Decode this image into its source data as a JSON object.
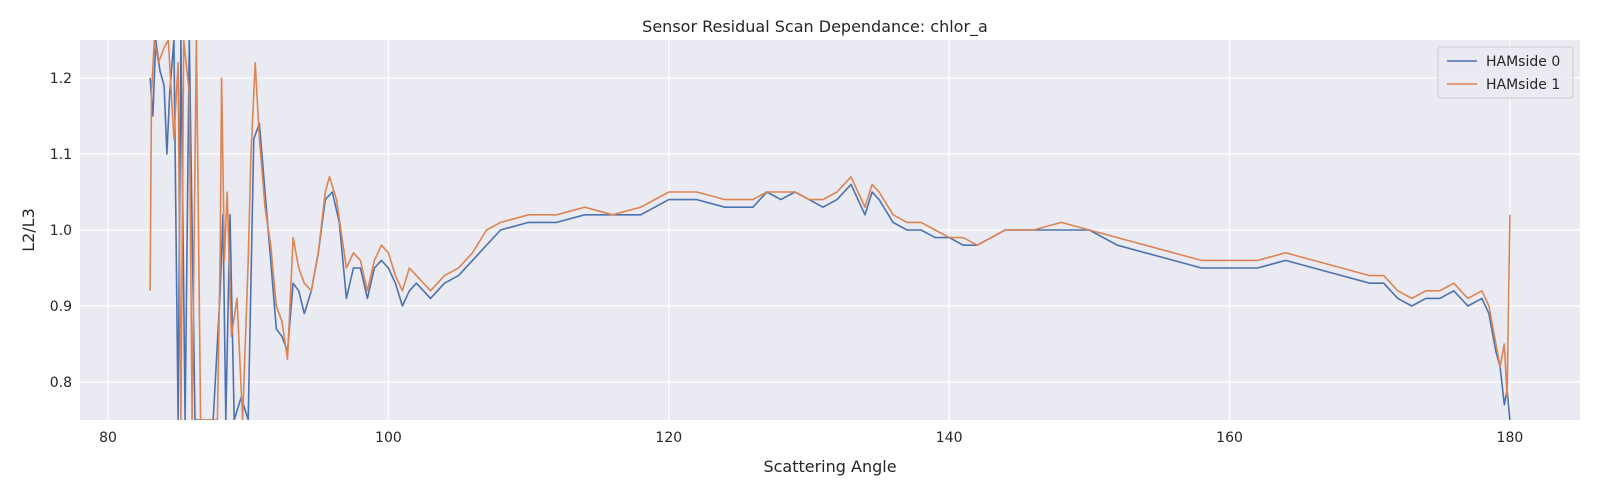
{
  "chart_data": {
    "type": "line",
    "title": "Sensor Residual Scan Dependance: chlor_a",
    "xlabel": "Scattering Angle",
    "ylabel": "L2/L3",
    "xlim": [
      78,
      185
    ],
    "ylim": [
      0.75,
      1.25
    ],
    "xticks": [
      80,
      100,
      120,
      140,
      160,
      180
    ],
    "yticks": [
      0.8,
      0.9,
      1.0,
      1.1,
      1.2
    ],
    "xtick_labels": [
      "80",
      "100",
      "120",
      "140",
      "160",
      "180"
    ],
    "ytick_labels": [
      "0.8",
      "0.9",
      "1.0",
      "1.1",
      "1.2"
    ],
    "grid": true,
    "legend_position": "top-right",
    "colors": {
      "plot_background": "#eaeaf2",
      "grid": "#ffffff",
      "series0": "#4c72b0",
      "series1": "#dd8452"
    },
    "series": [
      {
        "name": "HAMside 0",
        "color": "#4c72b0",
        "points": [
          [
            83.0,
            1.2
          ],
          [
            83.2,
            1.15
          ],
          [
            83.4,
            1.25
          ],
          [
            83.7,
            1.21
          ],
          [
            84.0,
            1.19
          ],
          [
            84.2,
            1.1
          ],
          [
            84.4,
            1.18
          ],
          [
            84.7,
            1.25
          ],
          [
            85.0,
            0.75
          ],
          [
            85.2,
            1.25
          ],
          [
            85.5,
            0.75
          ],
          [
            85.8,
            1.25
          ],
          [
            86.2,
            0.75
          ],
          [
            87.5,
            0.75
          ],
          [
            88.0,
            0.92
          ],
          [
            88.2,
            1.02
          ],
          [
            88.4,
            0.75
          ],
          [
            88.7,
            1.02
          ],
          [
            89.0,
            0.75
          ],
          [
            89.5,
            0.78
          ],
          [
            90.0,
            0.75
          ],
          [
            90.4,
            1.12
          ],
          [
            90.8,
            1.14
          ],
          [
            91.2,
            1.05
          ],
          [
            91.6,
            0.96
          ],
          [
            92.0,
            0.87
          ],
          [
            92.4,
            0.86
          ],
          [
            92.8,
            0.84
          ],
          [
            93.2,
            0.93
          ],
          [
            93.6,
            0.92
          ],
          [
            94.0,
            0.89
          ],
          [
            94.5,
            0.92
          ],
          [
            95.0,
            0.97
          ],
          [
            95.5,
            1.04
          ],
          [
            96.0,
            1.05
          ],
          [
            96.5,
            1.01
          ],
          [
            97.0,
            0.91
          ],
          [
            97.5,
            0.95
          ],
          [
            98.0,
            0.95
          ],
          [
            98.5,
            0.91
          ],
          [
            99.0,
            0.95
          ],
          [
            99.5,
            0.96
          ],
          [
            100.0,
            0.95
          ],
          [
            100.5,
            0.93
          ],
          [
            101.0,
            0.9
          ],
          [
            101.5,
            0.92
          ],
          [
            102.0,
            0.93
          ],
          [
            103.0,
            0.91
          ],
          [
            104.0,
            0.93
          ],
          [
            105.0,
            0.94
          ],
          [
            106.0,
            0.96
          ],
          [
            107.0,
            0.98
          ],
          [
            108.0,
            1.0
          ],
          [
            110.0,
            1.01
          ],
          [
            112.0,
            1.01
          ],
          [
            114.0,
            1.02
          ],
          [
            116.0,
            1.02
          ],
          [
            118.0,
            1.02
          ],
          [
            120.0,
            1.04
          ],
          [
            122.0,
            1.04
          ],
          [
            124.0,
            1.03
          ],
          [
            126.0,
            1.03
          ],
          [
            127.0,
            1.05
          ],
          [
            128.0,
            1.04
          ],
          [
            129.0,
            1.05
          ],
          [
            130.0,
            1.04
          ],
          [
            131.0,
            1.03
          ],
          [
            132.0,
            1.04
          ],
          [
            133.0,
            1.06
          ],
          [
            134.0,
            1.02
          ],
          [
            134.5,
            1.05
          ],
          [
            135.0,
            1.04
          ],
          [
            136.0,
            1.01
          ],
          [
            137.0,
            1.0
          ],
          [
            138.0,
            1.0
          ],
          [
            139.0,
            0.99
          ],
          [
            140.0,
            0.99
          ],
          [
            141.0,
            0.98
          ],
          [
            142.0,
            0.98
          ],
          [
            143.0,
            0.99
          ],
          [
            144.0,
            1.0
          ],
          [
            146.0,
            1.0
          ],
          [
            148.0,
            1.0
          ],
          [
            150.0,
            1.0
          ],
          [
            152.0,
            0.98
          ],
          [
            154.0,
            0.97
          ],
          [
            156.0,
            0.96
          ],
          [
            158.0,
            0.95
          ],
          [
            160.0,
            0.95
          ],
          [
            162.0,
            0.95
          ],
          [
            164.0,
            0.96
          ],
          [
            166.0,
            0.95
          ],
          [
            168.0,
            0.94
          ],
          [
            170.0,
            0.93
          ],
          [
            171.0,
            0.93
          ],
          [
            172.0,
            0.91
          ],
          [
            173.0,
            0.9
          ],
          [
            174.0,
            0.91
          ],
          [
            175.0,
            0.91
          ],
          [
            176.0,
            0.92
          ],
          [
            177.0,
            0.9
          ],
          [
            178.0,
            0.91
          ],
          [
            178.5,
            0.89
          ],
          [
            179.0,
            0.84
          ],
          [
            179.3,
            0.82
          ],
          [
            179.6,
            0.77
          ],
          [
            179.8,
            0.79
          ],
          [
            180.0,
            0.75
          ]
        ]
      },
      {
        "name": "HAMside 1",
        "color": "#dd8452",
        "points": [
          [
            83.0,
            0.92
          ],
          [
            83.1,
            1.18
          ],
          [
            83.3,
            1.25
          ],
          [
            83.6,
            1.22
          ],
          [
            84.0,
            1.24
          ],
          [
            84.3,
            1.25
          ],
          [
            84.7,
            1.12
          ],
          [
            85.0,
            1.22
          ],
          [
            85.2,
            0.75
          ],
          [
            85.4,
            1.25
          ],
          [
            85.8,
            1.18
          ],
          [
            86.0,
            0.75
          ],
          [
            86.3,
            1.25
          ],
          [
            86.6,
            0.75
          ],
          [
            87.8,
            0.75
          ],
          [
            88.0,
            0.97
          ],
          [
            88.1,
            1.2
          ],
          [
            88.3,
            0.96
          ],
          [
            88.5,
            1.05
          ],
          [
            88.8,
            0.86
          ],
          [
            89.2,
            0.91
          ],
          [
            89.6,
            0.75
          ],
          [
            90.0,
            0.96
          ],
          [
            90.2,
            1.1
          ],
          [
            90.5,
            1.22
          ],
          [
            90.8,
            1.12
          ],
          [
            91.2,
            1.03
          ],
          [
            91.6,
            0.98
          ],
          [
            92.0,
            0.9
          ],
          [
            92.4,
            0.88
          ],
          [
            92.8,
            0.83
          ],
          [
            93.2,
            0.99
          ],
          [
            93.6,
            0.95
          ],
          [
            94.0,
            0.93
          ],
          [
            94.5,
            0.92
          ],
          [
            95.0,
            0.97
          ],
          [
            95.5,
            1.05
          ],
          [
            95.8,
            1.07
          ],
          [
            96.3,
            1.04
          ],
          [
            97.0,
            0.95
          ],
          [
            97.5,
            0.97
          ],
          [
            98.0,
            0.96
          ],
          [
            98.5,
            0.92
          ],
          [
            99.0,
            0.96
          ],
          [
            99.5,
            0.98
          ],
          [
            100.0,
            0.97
          ],
          [
            100.5,
            0.94
          ],
          [
            101.0,
            0.92
          ],
          [
            101.5,
            0.95
          ],
          [
            102.0,
            0.94
          ],
          [
            103.0,
            0.92
          ],
          [
            104.0,
            0.94
          ],
          [
            105.0,
            0.95
          ],
          [
            106.0,
            0.97
          ],
          [
            107.0,
            1.0
          ],
          [
            108.0,
            1.01
          ],
          [
            110.0,
            1.02
          ],
          [
            112.0,
            1.02
          ],
          [
            114.0,
            1.03
          ],
          [
            116.0,
            1.02
          ],
          [
            118.0,
            1.03
          ],
          [
            120.0,
            1.05
          ],
          [
            122.0,
            1.05
          ],
          [
            124.0,
            1.04
          ],
          [
            126.0,
            1.04
          ],
          [
            127.0,
            1.05
          ],
          [
            128.0,
            1.05
          ],
          [
            129.0,
            1.05
          ],
          [
            130.0,
            1.04
          ],
          [
            131.0,
            1.04
          ],
          [
            132.0,
            1.05
          ],
          [
            133.0,
            1.07
          ],
          [
            134.0,
            1.03
          ],
          [
            134.5,
            1.06
          ],
          [
            135.0,
            1.05
          ],
          [
            136.0,
            1.02
          ],
          [
            137.0,
            1.01
          ],
          [
            138.0,
            1.01
          ],
          [
            139.0,
            1.0
          ],
          [
            140.0,
            0.99
          ],
          [
            141.0,
            0.99
          ],
          [
            142.0,
            0.98
          ],
          [
            143.0,
            0.99
          ],
          [
            144.0,
            1.0
          ],
          [
            146.0,
            1.0
          ],
          [
            148.0,
            1.01
          ],
          [
            150.0,
            1.0
          ],
          [
            152.0,
            0.99
          ],
          [
            154.0,
            0.98
          ],
          [
            156.0,
            0.97
          ],
          [
            158.0,
            0.96
          ],
          [
            160.0,
            0.96
          ],
          [
            162.0,
            0.96
          ],
          [
            164.0,
            0.97
          ],
          [
            166.0,
            0.96
          ],
          [
            168.0,
            0.95
          ],
          [
            170.0,
            0.94
          ],
          [
            171.0,
            0.94
          ],
          [
            172.0,
            0.92
          ],
          [
            173.0,
            0.91
          ],
          [
            174.0,
            0.92
          ],
          [
            175.0,
            0.92
          ],
          [
            176.0,
            0.93
          ],
          [
            177.0,
            0.91
          ],
          [
            178.0,
            0.92
          ],
          [
            178.5,
            0.9
          ],
          [
            179.0,
            0.85
          ],
          [
            179.3,
            0.82
          ],
          [
            179.6,
            0.85
          ],
          [
            179.8,
            0.78
          ],
          [
            180.0,
            1.02
          ]
        ]
      }
    ]
  }
}
